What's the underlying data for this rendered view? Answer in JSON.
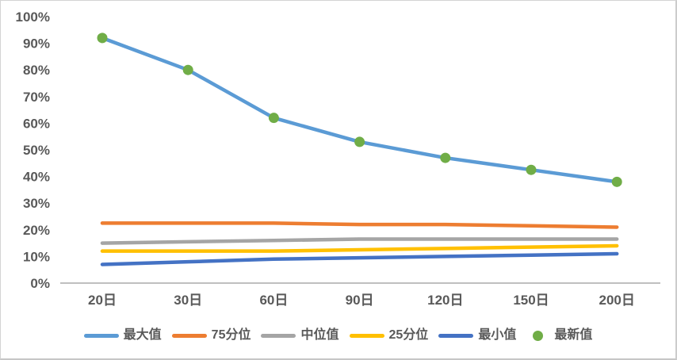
{
  "page": {
    "background": "#ffffff",
    "border_color": "#d4d4d4",
    "axis_color": "#bfbfbf",
    "label_color": "#595959"
  },
  "chart_data": {
    "type": "line",
    "title": "",
    "xlabel": "",
    "ylabel": "",
    "categories": [
      "20日",
      "30日",
      "60日",
      "90日",
      "120日",
      "150日",
      "200日"
    ],
    "series": [
      {
        "name": "最大值",
        "color": "#5B9BD5",
        "style": "line",
        "values": [
          92,
          80,
          62,
          53,
          47,
          42.5,
          38
        ]
      },
      {
        "name": "75分位",
        "color": "#ED7D31",
        "style": "line",
        "values": [
          22.5,
          22.5,
          22.5,
          22,
          22,
          21.5,
          21
        ]
      },
      {
        "name": "中位值",
        "color": "#A5A5A5",
        "style": "line",
        "values": [
          15,
          15.5,
          16,
          16.5,
          16.5,
          16.5,
          16.5
        ]
      },
      {
        "name": "25分位",
        "color": "#FFC000",
        "style": "line",
        "values": [
          12,
          12,
          12,
          12.5,
          13,
          13.5,
          14
        ]
      },
      {
        "name": "最小值",
        "color": "#4472C4",
        "style": "line",
        "values": [
          7,
          8,
          9,
          9.5,
          10,
          10.5,
          11
        ]
      },
      {
        "name": "最新值",
        "color": "#70AD47",
        "style": "points",
        "values": [
          92,
          80,
          62,
          53,
          47,
          42.5,
          38
        ]
      }
    ],
    "y_ticks": [
      "0%",
      "10%",
      "20%",
      "30%",
      "40%",
      "50%",
      "60%",
      "70%",
      "80%",
      "90%",
      "100%"
    ],
    "ylim": [
      0,
      100
    ],
    "grid": false,
    "legend_position": "bottom"
  }
}
